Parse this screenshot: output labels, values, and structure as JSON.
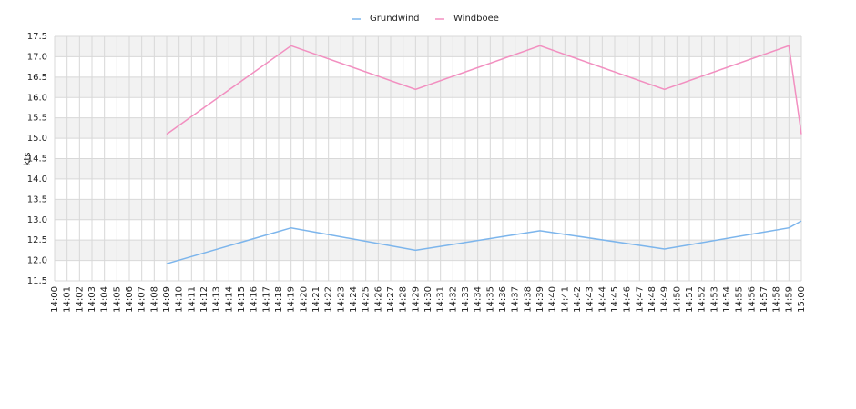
{
  "chart_data": {
    "type": "line",
    "ylabel": "kts",
    "xlim": [
      "14:00",
      "15:00"
    ],
    "xticks": [
      "14:00",
      "14:01",
      "14:02",
      "14:03",
      "14:04",
      "14:05",
      "14:06",
      "14:07",
      "14:08",
      "14:09",
      "14:10",
      "14:11",
      "14:12",
      "14:13",
      "14:14",
      "14:15",
      "14:16",
      "14:17",
      "14:18",
      "14:19",
      "14:20",
      "14:21",
      "14:22",
      "14:23",
      "14:24",
      "14:25",
      "14:26",
      "14:27",
      "14:28",
      "14:29",
      "14:30",
      "14:31",
      "14:32",
      "14:33",
      "14:34",
      "14:35",
      "14:36",
      "14:37",
      "14:38",
      "14:39",
      "14:40",
      "14:41",
      "14:42",
      "14:43",
      "14:44",
      "14:45",
      "14:46",
      "14:47",
      "14:48",
      "14:49",
      "14:50",
      "14:51",
      "14:52",
      "14:53",
      "14:54",
      "14:55",
      "14:56",
      "14:57",
      "14:58",
      "14:59",
      "15:00"
    ],
    "ylim": [
      11.5,
      17.5
    ],
    "yticks": [
      11.5,
      {
        "value": 12,
        "label": "12.0"
      },
      12.5,
      {
        "value": 13,
        "label": "13.0"
      },
      13.5,
      {
        "value": 14,
        "label": "14.0"
      },
      14.5,
      {
        "value": 15,
        "label": "15.0"
      },
      15.5,
      {
        "value": 16,
        "label": "16.0"
      },
      16.5,
      {
        "value": 17,
        "label": "17.0"
      },
      17.5
    ],
    "grid": true,
    "legend": "top",
    "x": [
      "14:09",
      "14:19",
      "14:29",
      "14:39",
      "14:49",
      "14:59",
      "15:00"
    ],
    "series": [
      {
        "name": "Grundwind",
        "color": "#7cb5ec",
        "values": [
          11.92,
          12.8,
          12.25,
          12.73,
          12.28,
          12.8,
          12.97
        ]
      },
      {
        "name": "Windboee",
        "color": "#f28fc0",
        "values": [
          15.1,
          17.27,
          16.2,
          17.27,
          16.2,
          17.27,
          15.1
        ]
      }
    ]
  }
}
